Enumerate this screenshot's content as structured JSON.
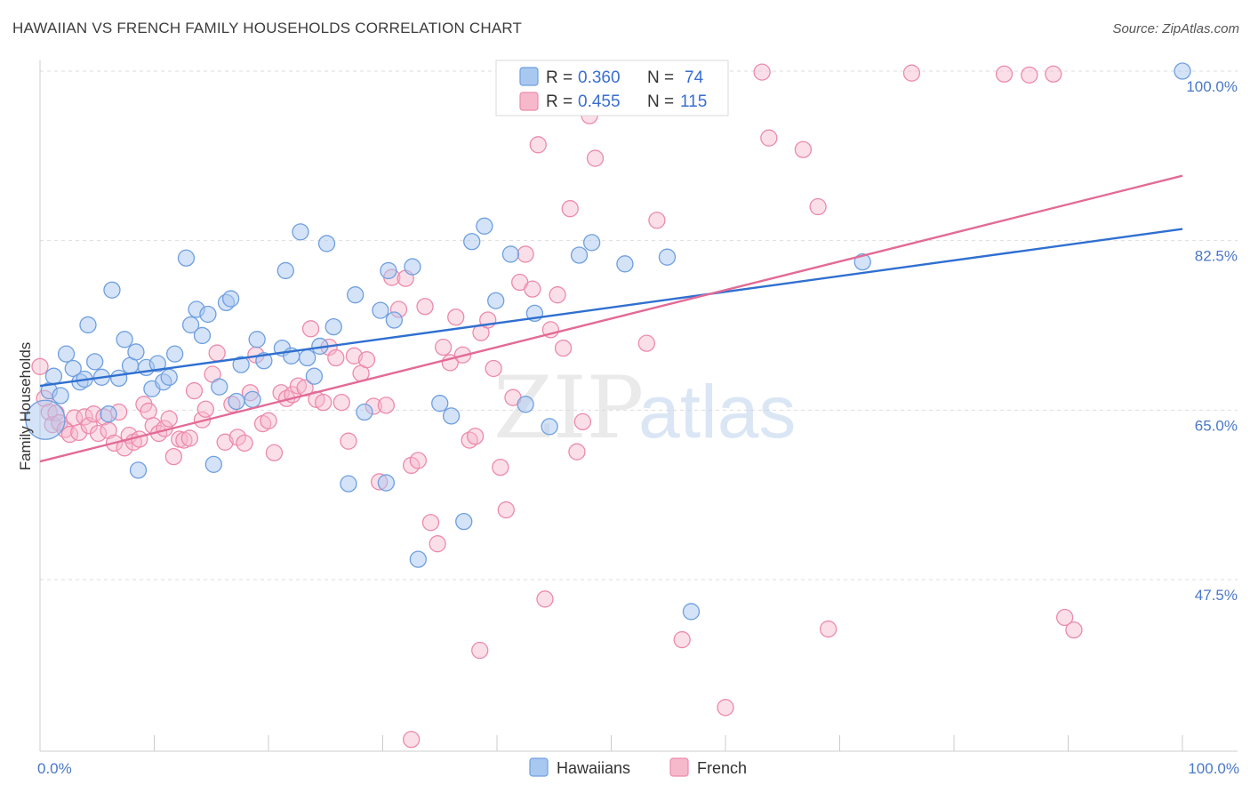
{
  "title": "HAWAIIAN VS FRENCH FAMILY HOUSEHOLDS CORRELATION CHART",
  "source": "Source: ZipAtlas.com",
  "watermark": {
    "zip": "ZIP",
    "atlas": "atlas"
  },
  "colors": {
    "hawaiians_fill": "#a9c8f0",
    "hawaiians_stroke": "#6f9fe0",
    "hawaiians_line": "#2f6fd0",
    "french_fill": "#f6b9cc",
    "french_stroke": "#ec8aab",
    "french_line": "#e26b96",
    "tick_label": "#4a78c8",
    "grid": "#dddddd"
  },
  "legend": {
    "rows": [
      {
        "r_label": "R = ",
        "r_value": "0.360",
        "n_label": "N = ",
        "n_value": "74"
      },
      {
        "r_label": "R = ",
        "r_value": "0.455",
        "n_label": "N = ",
        "n_value": "115"
      }
    ]
  },
  "chart_data": {
    "type": "scatter",
    "title": "HAWAIIAN VS FRENCH FAMILY HOUSEHOLDS CORRELATION CHART",
    "xlabel": "",
    "ylabel": "Family Households",
    "xlim": [
      0,
      100
    ],
    "ylim": [
      34,
      102
    ],
    "x_tick_labels": [
      "0.0%",
      "100.0%"
    ],
    "y_ticks": [
      47.5,
      65.0,
      82.5,
      100.0
    ],
    "y_tick_labels": [
      "47.5%",
      "65.0%",
      "82.5%",
      "100.0%"
    ],
    "grid": true,
    "legend_position": "top-center",
    "series": [
      {
        "name": "Hawaiians",
        "r": 0.36,
        "n": 74,
        "trend": [
          [
            0,
            67.5
          ],
          [
            100,
            83.7
          ]
        ],
        "points": [
          [
            0.0,
            64.0
          ],
          [
            0.8,
            67.0
          ],
          [
            1.2,
            68.5
          ],
          [
            1.8,
            66.5
          ],
          [
            2.3,
            70.8
          ],
          [
            2.9,
            69.3
          ],
          [
            3.5,
            67.9
          ],
          [
            3.9,
            68.2
          ],
          [
            4.2,
            73.8
          ],
          [
            4.8,
            70.0
          ],
          [
            5.4,
            68.4
          ],
          [
            6.0,
            64.6
          ],
          [
            6.3,
            77.4
          ],
          [
            6.9,
            68.3
          ],
          [
            7.4,
            72.3
          ],
          [
            7.9,
            69.6
          ],
          [
            8.4,
            71.0
          ],
          [
            8.6,
            58.8
          ],
          [
            9.3,
            69.4
          ],
          [
            9.8,
            67.2
          ],
          [
            10.3,
            69.8
          ],
          [
            10.8,
            67.9
          ],
          [
            11.3,
            68.4
          ],
          [
            11.8,
            70.8
          ],
          [
            12.8,
            80.7
          ],
          [
            13.2,
            73.8
          ],
          [
            13.7,
            75.4
          ],
          [
            14.2,
            72.7
          ],
          [
            14.7,
            74.9
          ],
          [
            15.2,
            59.4
          ],
          [
            15.7,
            67.4
          ],
          [
            16.3,
            76.1
          ],
          [
            16.7,
            76.5
          ],
          [
            17.2,
            65.9
          ],
          [
            17.6,
            69.7
          ],
          [
            18.6,
            66.1
          ],
          [
            19.0,
            72.3
          ],
          [
            19.6,
            70.1
          ],
          [
            21.2,
            71.4
          ],
          [
            21.5,
            79.4
          ],
          [
            22.0,
            70.6
          ],
          [
            22.8,
            83.4
          ],
          [
            23.4,
            70.4
          ],
          [
            24.0,
            68.5
          ],
          [
            24.5,
            71.6
          ],
          [
            25.1,
            82.2
          ],
          [
            25.7,
            73.6
          ],
          [
            27.0,
            57.4
          ],
          [
            27.6,
            76.9
          ],
          [
            28.4,
            64.8
          ],
          [
            29.8,
            75.3
          ],
          [
            30.3,
            57.5
          ],
          [
            30.5,
            79.4
          ],
          [
            31.0,
            74.3
          ],
          [
            32.6,
            79.8
          ],
          [
            33.1,
            49.6
          ],
          [
            35.0,
            65.7
          ],
          [
            36.0,
            64.4
          ],
          [
            37.1,
            53.5
          ],
          [
            37.8,
            82.4
          ],
          [
            38.9,
            84.0
          ],
          [
            39.9,
            76.3
          ],
          [
            41.2,
            81.1
          ],
          [
            42.5,
            65.6
          ],
          [
            43.3,
            75.0
          ],
          [
            44.6,
            63.3
          ],
          [
            47.2,
            81.0
          ],
          [
            48.3,
            82.3
          ],
          [
            51.2,
            80.1
          ],
          [
            54.9,
            80.8
          ],
          [
            57.0,
            44.2
          ],
          [
            72.0,
            80.3
          ],
          [
            100.0,
            100.0
          ]
        ]
      },
      {
        "name": "French",
        "r": 0.455,
        "n": 115,
        "trend": [
          [
            0,
            59.7
          ],
          [
            100,
            89.2
          ]
        ],
        "points": [
          [
            0.0,
            69.5
          ],
          [
            0.4,
            66.2
          ],
          [
            0.8,
            64.8
          ],
          [
            1.1,
            63.5
          ],
          [
            1.4,
            64.7
          ],
          [
            1.7,
            63.7
          ],
          [
            2.2,
            63.0
          ],
          [
            2.6,
            62.5
          ],
          [
            3.0,
            64.2
          ],
          [
            3.4,
            62.7
          ],
          [
            3.9,
            64.3
          ],
          [
            4.3,
            63.4
          ],
          [
            4.7,
            64.6
          ],
          [
            5.1,
            62.6
          ],
          [
            5.6,
            64.3
          ],
          [
            6.0,
            62.9
          ],
          [
            6.5,
            61.6
          ],
          [
            6.9,
            64.8
          ],
          [
            7.4,
            61.1
          ],
          [
            7.8,
            62.4
          ],
          [
            8.2,
            61.7
          ],
          [
            8.7,
            62.0
          ],
          [
            9.1,
            65.6
          ],
          [
            9.5,
            64.9
          ],
          [
            9.9,
            63.4
          ],
          [
            10.4,
            62.6
          ],
          [
            10.9,
            63.1
          ],
          [
            11.3,
            64.1
          ],
          [
            11.7,
            60.2
          ],
          [
            12.2,
            62.0
          ],
          [
            12.6,
            61.9
          ],
          [
            13.1,
            62.1
          ],
          [
            13.5,
            67.0
          ],
          [
            14.2,
            64.0
          ],
          [
            14.5,
            65.1
          ],
          [
            15.1,
            68.7
          ],
          [
            15.5,
            70.9
          ],
          [
            16.2,
            61.7
          ],
          [
            16.8,
            65.6
          ],
          [
            17.3,
            62.2
          ],
          [
            17.9,
            61.6
          ],
          [
            18.4,
            66.8
          ],
          [
            18.9,
            70.7
          ],
          [
            19.5,
            63.6
          ],
          [
            20.0,
            63.9
          ],
          [
            20.5,
            60.6
          ],
          [
            21.1,
            66.8
          ],
          [
            21.6,
            66.2
          ],
          [
            22.1,
            66.6
          ],
          [
            22.6,
            67.5
          ],
          [
            23.2,
            67.3
          ],
          [
            23.7,
            73.4
          ],
          [
            24.2,
            66.1
          ],
          [
            24.8,
            65.8
          ],
          [
            25.3,
            71.5
          ],
          [
            25.9,
            70.4
          ],
          [
            26.4,
            65.8
          ],
          [
            27.0,
            61.8
          ],
          [
            27.5,
            70.6
          ],
          [
            28.1,
            68.8
          ],
          [
            28.6,
            70.2
          ],
          [
            29.2,
            65.4
          ],
          [
            29.7,
            57.6
          ],
          [
            30.3,
            65.5
          ],
          [
            30.8,
            78.7
          ],
          [
            31.4,
            75.4
          ],
          [
            32.0,
            78.6
          ],
          [
            32.5,
            59.3
          ],
          [
            33.1,
            59.8
          ],
          [
            33.7,
            75.7
          ],
          [
            34.2,
            53.4
          ],
          [
            34.8,
            51.2
          ],
          [
            35.3,
            71.5
          ],
          [
            35.9,
            69.9
          ],
          [
            36.4,
            74.6
          ],
          [
            37.0,
            70.7
          ],
          [
            37.6,
            61.9
          ],
          [
            38.1,
            62.3
          ],
          [
            38.6,
            73.0
          ],
          [
            39.2,
            74.3
          ],
          [
            39.7,
            69.3
          ],
          [
            40.3,
            59.1
          ],
          [
            40.8,
            54.7
          ],
          [
            41.4,
            66.3
          ],
          [
            42.0,
            78.2
          ],
          [
            42.5,
            81.1
          ],
          [
            43.1,
            77.5
          ],
          [
            43.6,
            92.4
          ],
          [
            44.2,
            45.5
          ],
          [
            44.7,
            73.3
          ],
          [
            45.3,
            76.9
          ],
          [
            45.8,
            71.4
          ],
          [
            46.4,
            85.8
          ],
          [
            47.0,
            60.7
          ],
          [
            47.5,
            63.8
          ],
          [
            48.1,
            95.4
          ],
          [
            48.6,
            91.0
          ],
          [
            52.0,
            99.6
          ],
          [
            53.1,
            71.9
          ],
          [
            54.0,
            84.6
          ],
          [
            56.2,
            41.3
          ],
          [
            58.0,
            99.6
          ],
          [
            60.0,
            34.3
          ],
          [
            63.2,
            99.9
          ],
          [
            63.8,
            93.1
          ],
          [
            66.8,
            91.9
          ],
          [
            68.1,
            86.0
          ],
          [
            69.0,
            42.4
          ],
          [
            76.3,
            99.8
          ],
          [
            84.4,
            99.7
          ],
          [
            86.6,
            99.6
          ],
          [
            88.7,
            99.7
          ],
          [
            89.7,
            43.6
          ],
          [
            90.5,
            42.3
          ],
          [
            32.5,
            31.0
          ],
          [
            38.5,
            40.2
          ]
        ]
      }
    ]
  },
  "bottom_legend": {
    "items": [
      "Hawaiians",
      "French"
    ]
  }
}
